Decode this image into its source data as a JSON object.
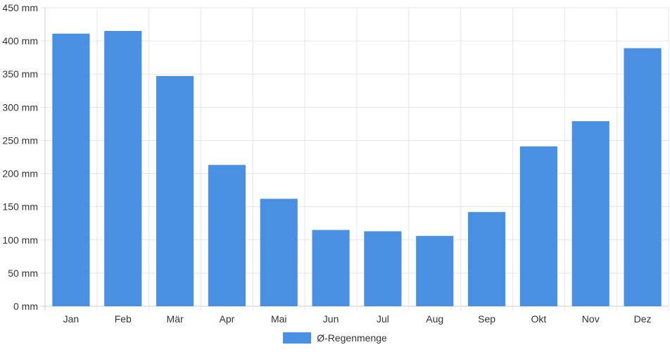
{
  "chart_data": {
    "type": "bar",
    "categories": [
      "Jan",
      "Feb",
      "Mär",
      "Apr",
      "Mai",
      "Jun",
      "Jul",
      "Aug",
      "Sep",
      "Okt",
      "Nov",
      "Dez"
    ],
    "series": [
      {
        "name": "Ø-Regenmenge",
        "values": [
          411,
          415,
          347,
          213,
          162,
          115,
          113,
          106,
          142,
          241,
          279,
          389
        ]
      }
    ],
    "ylim": [
      0,
      450
    ],
    "yticks": [
      0,
      50,
      100,
      150,
      200,
      250,
      300,
      350,
      400,
      450
    ],
    "y_unit_suffix": " mm",
    "grid": true,
    "legend_position": "bottom",
    "colors": {
      "bar": "#4a90e2",
      "grid": "#e5e5e5",
      "axis": "#cccccc"
    }
  }
}
